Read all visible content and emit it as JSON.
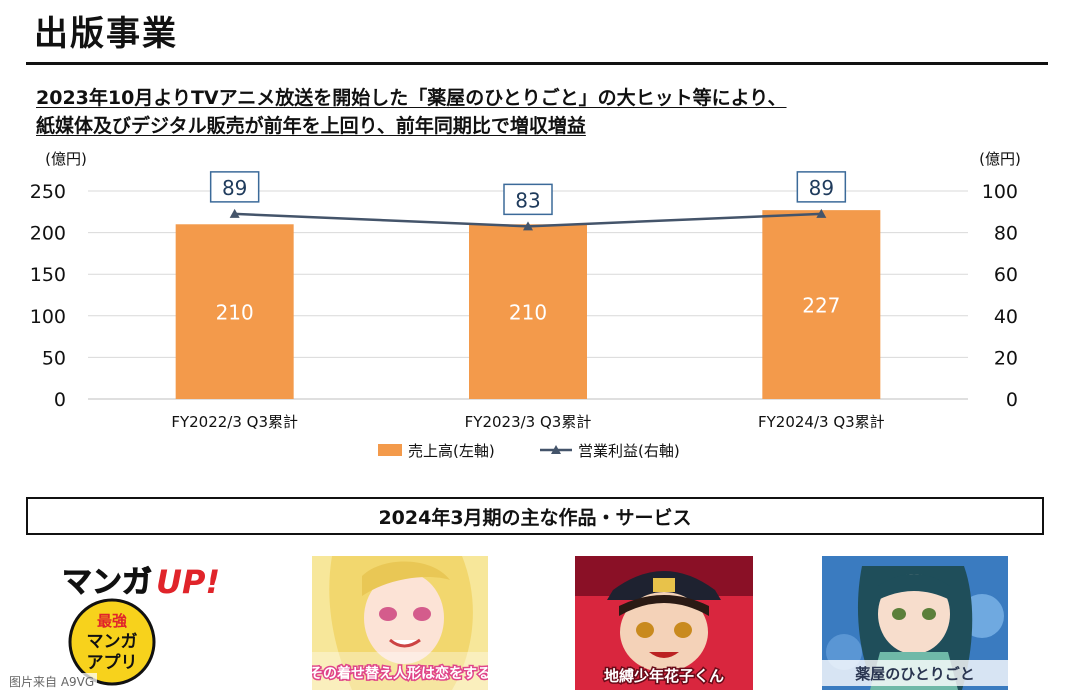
{
  "page": {
    "title": "出版事業",
    "headline_line1": "2023年10月よりTVアニメ放送を開始した「薬屋のひとりごと」の大ヒット等により、",
    "headline_line2": "紙媒体及びデジタル販売が前年を上回り、前年同期比で増収増益",
    "services_heading": "2024年3月期の主な作品・サービス",
    "footer": "图片来自 A9VG"
  },
  "chart_data": {
    "type": "bar",
    "categories": [
      "FY2022/3 Q3累計",
      "FY2023/3 Q3累計",
      "FY2024/3 Q3累計"
    ],
    "series": [
      {
        "name": "売上高(左軸)",
        "type": "bar",
        "axis": "left",
        "values": [
          210,
          210,
          227
        ],
        "color": "#F39A4B"
      },
      {
        "name": "営業利益(右軸)",
        "type": "line",
        "axis": "right",
        "values": [
          89,
          83,
          89
        ],
        "color": "#44546A"
      }
    ],
    "left_axis": {
      "unit": "(億円)",
      "min": 0,
      "max": 250,
      "ticks": [
        0,
        50,
        100,
        150,
        200,
        250
      ]
    },
    "right_axis": {
      "unit": "(億円)",
      "min": 0,
      "max": 100,
      "ticks": [
        0,
        20,
        40,
        60,
        80,
        100
      ]
    },
    "grid": true,
    "legend": "bottom"
  },
  "services": [
    {
      "name": "manga-up-logo",
      "logo_main": "マンガ",
      "logo_up": "UP!",
      "badge_line1": "最強",
      "badge_line2": "マンガ",
      "badge_line3": "アプリ"
    },
    {
      "name": "sono-bisque-doll-cover",
      "caption": "その着せ替え人形は恋をする",
      "bg": "#F6E48A"
    },
    {
      "name": "jibaku-shounen-cover",
      "caption": "地縛少年花子くん",
      "bg": "#C0203A"
    },
    {
      "name": "kusuriya-cover",
      "caption": "薬屋のひとりごと",
      "bg": "#2E6FB0"
    }
  ]
}
